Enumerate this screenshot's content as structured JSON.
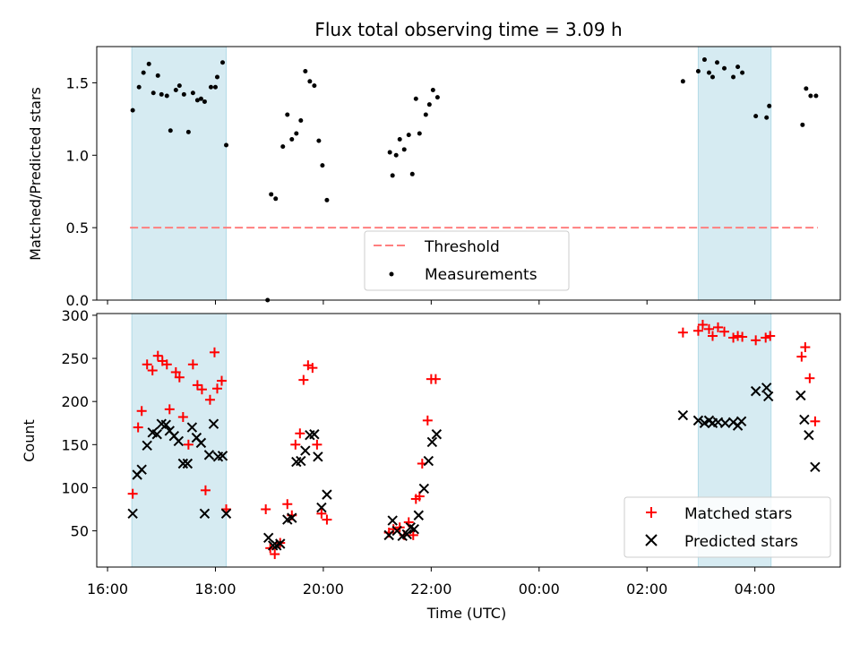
{
  "chart_data": [
    {
      "type": "scatter",
      "title": "Flux total observing time = 3.09 h",
      "ylabel": "Matched/Predicted stars",
      "xlabel": "",
      "ylim": [
        0,
        1.75
      ],
      "yticks": [
        0.0,
        0.5,
        1.0,
        1.5
      ],
      "ytick_labels": [
        "0.0",
        "0.5",
        "1.0",
        "1.5"
      ],
      "legend_position": "lower-center",
      "threshold": {
        "name": "Threshold",
        "value": 0.5,
        "color": "#ff7f7f",
        "style": "dashed",
        "x_range": [
          "16:25",
          "05:10"
        ]
      },
      "shaded_spans": [
        {
          "start": "16:27",
          "end": "18:12"
        },
        {
          "start": "02:57",
          "end": "04:18"
        }
      ],
      "series": [
        {
          "name": "Measurements",
          "color": "#000000",
          "marker": "dot",
          "points": [
            [
              "16:28",
              1.31
            ],
            [
              "16:35",
              1.47
            ],
            [
              "16:40",
              1.57
            ],
            [
              "16:46",
              1.63
            ],
            [
              "16:51",
              1.43
            ],
            [
              "16:56",
              1.55
            ],
            [
              "17:00",
              1.42
            ],
            [
              "17:06",
              1.41
            ],
            [
              "17:10",
              1.17
            ],
            [
              "17:16",
              1.45
            ],
            [
              "17:20",
              1.48
            ],
            [
              "17:25",
              1.42
            ],
            [
              "17:30",
              1.16
            ],
            [
              "17:35",
              1.43
            ],
            [
              "17:40",
              1.38
            ],
            [
              "17:44",
              1.39
            ],
            [
              "17:48",
              1.37
            ],
            [
              "17:55",
              1.47
            ],
            [
              "18:00",
              1.47
            ],
            [
              "18:02",
              1.54
            ],
            [
              "18:08",
              1.64
            ],
            [
              "18:12",
              1.07
            ],
            [
              "18:58",
              0.0
            ],
            [
              "19:02",
              0.73
            ],
            [
              "19:07",
              0.7
            ],
            [
              "19:15",
              1.06
            ],
            [
              "19:20",
              1.28
            ],
            [
              "19:25",
              1.11
            ],
            [
              "19:30",
              1.15
            ],
            [
              "19:35",
              1.24
            ],
            [
              "19:40",
              1.58
            ],
            [
              "19:45",
              1.51
            ],
            [
              "19:50",
              1.48
            ],
            [
              "19:55",
              1.1
            ],
            [
              "19:59",
              0.93
            ],
            [
              "20:04",
              0.69
            ],
            [
              "21:14",
              1.02
            ],
            [
              "21:17",
              0.86
            ],
            [
              "21:21",
              1.0
            ],
            [
              "21:25",
              1.11
            ],
            [
              "21:30",
              1.04
            ],
            [
              "21:35",
              1.14
            ],
            [
              "21:39",
              0.87
            ],
            [
              "21:43",
              1.39
            ],
            [
              "21:47",
              1.15
            ],
            [
              "21:54",
              1.28
            ],
            [
              "21:58",
              1.35
            ],
            [
              "22:02",
              1.45
            ],
            [
              "22:07",
              1.4
            ],
            [
              "02:40",
              1.51
            ],
            [
              "02:57",
              1.58
            ],
            [
              "03:04",
              1.66
            ],
            [
              "03:09",
              1.57
            ],
            [
              "03:13",
              1.54
            ],
            [
              "03:18",
              1.64
            ],
            [
              "03:26",
              1.6
            ],
            [
              "03:36",
              1.54
            ],
            [
              "03:41",
              1.61
            ],
            [
              "03:46",
              1.57
            ],
            [
              "04:01",
              1.27
            ],
            [
              "04:13",
              1.26
            ],
            [
              "04:16",
              1.34
            ],
            [
              "04:53",
              1.21
            ],
            [
              "04:57",
              1.46
            ],
            [
              "05:02",
              1.41
            ],
            [
              "05:08",
              1.41
            ]
          ]
        }
      ]
    },
    {
      "type": "scatter",
      "title": "",
      "ylabel": "Count",
      "xlabel": "Time (UTC)",
      "ylim": [
        8,
        302
      ],
      "yticks": [
        50,
        100,
        150,
        200,
        250,
        300
      ],
      "ytick_labels": [
        "50",
        "100",
        "150",
        "200",
        "250",
        "300"
      ],
      "x_start": "15:48",
      "x_end": "05:35",
      "xticks": [
        "16:00",
        "18:00",
        "20:00",
        "22:00",
        "00:00",
        "02:00",
        "04:00"
      ],
      "legend_position": "lower-right",
      "shaded_spans": [
        {
          "start": "16:27",
          "end": "18:12"
        },
        {
          "start": "02:57",
          "end": "04:18"
        }
      ],
      "series": [
        {
          "name": "Matched stars",
          "color": "#ff0000",
          "marker": "plus",
          "points": [
            [
              "16:28",
              93
            ],
            [
              "16:34",
              170
            ],
            [
              "16:38",
              189
            ],
            [
              "16:44",
              243
            ],
            [
              "16:50",
              236
            ],
            [
              "16:56",
              253
            ],
            [
              "17:01",
              247
            ],
            [
              "17:06",
              243
            ],
            [
              "17:09",
              191
            ],
            [
              "17:16",
              234
            ],
            [
              "17:20",
              228
            ],
            [
              "17:24",
              182
            ],
            [
              "17:30",
              150
            ],
            [
              "17:35",
              243
            ],
            [
              "17:40",
              219
            ],
            [
              "17:45",
              214
            ],
            [
              "17:49",
              97
            ],
            [
              "17:54",
              202
            ],
            [
              "17:59",
              257
            ],
            [
              "18:02",
              215
            ],
            [
              "18:07",
              224
            ],
            [
              "18:12",
              75
            ],
            [
              "18:56",
              75
            ],
            [
              "19:01",
              30
            ],
            [
              "19:06",
              23
            ],
            [
              "19:12",
              36
            ],
            [
              "19:20",
              81
            ],
            [
              "19:25",
              68
            ],
            [
              "19:29",
              150
            ],
            [
              "19:34",
              163
            ],
            [
              "19:38",
              225
            ],
            [
              "19:43",
              242
            ],
            [
              "19:48",
              239
            ],
            [
              "19:53",
              150
            ],
            [
              "19:58",
              70
            ],
            [
              "20:04",
              63
            ],
            [
              "21:13",
              48
            ],
            [
              "21:18",
              52
            ],
            [
              "21:25",
              54
            ],
            [
              "21:30",
              45
            ],
            [
              "21:35",
              60
            ],
            [
              "21:40",
              45
            ],
            [
              "21:43",
              87
            ],
            [
              "21:47",
              90
            ],
            [
              "21:50",
              128
            ],
            [
              "21:56",
              178
            ],
            [
              "22:00",
              226
            ],
            [
              "22:05",
              226
            ],
            [
              "02:40",
              280
            ],
            [
              "02:57",
              282
            ],
            [
              "03:02",
              289
            ],
            [
              "03:09",
              284
            ],
            [
              "03:13",
              276
            ],
            [
              "03:19",
              286
            ],
            [
              "03:26",
              281
            ],
            [
              "03:36",
              274
            ],
            [
              "03:41",
              276
            ],
            [
              "03:46",
              275
            ],
            [
              "04:01",
              271
            ],
            [
              "04:12",
              274
            ],
            [
              "04:17",
              276
            ],
            [
              "04:52",
              252
            ],
            [
              "04:56",
              263
            ],
            [
              "05:01",
              227
            ],
            [
              "05:07",
              177
            ]
          ]
        },
        {
          "name": "Predicted stars",
          "color": "#000000",
          "marker": "x",
          "points": [
            [
              "16:28",
              70
            ],
            [
              "16:33",
              115
            ],
            [
              "16:38",
              121
            ],
            [
              "16:44",
              149
            ],
            [
              "16:50",
              164
            ],
            [
              "16:55",
              162
            ],
            [
              "17:00",
              174
            ],
            [
              "17:05",
              173
            ],
            [
              "17:09",
              166
            ],
            [
              "17:14",
              160
            ],
            [
              "17:19",
              154
            ],
            [
              "17:24",
              128
            ],
            [
              "17:29",
              128
            ],
            [
              "17:34",
              170
            ],
            [
              "17:39",
              158
            ],
            [
              "17:44",
              152
            ],
            [
              "17:48",
              70
            ],
            [
              "17:53",
              138
            ],
            [
              "17:58",
              174
            ],
            [
              "18:03",
              136
            ],
            [
              "18:08",
              137
            ],
            [
              "18:12",
              70
            ],
            [
              "18:59",
              42
            ],
            [
              "19:04",
              33
            ],
            [
              "19:08",
              33
            ],
            [
              "19:12",
              35
            ],
            [
              "19:20",
              63
            ],
            [
              "19:25",
              65
            ],
            [
              "19:30",
              130
            ],
            [
              "19:35",
              131
            ],
            [
              "19:40",
              143
            ],
            [
              "19:45",
              161
            ],
            [
              "19:50",
              162
            ],
            [
              "19:54",
              136
            ],
            [
              "19:58",
              77
            ],
            [
              "20:04",
              92
            ],
            [
              "21:13",
              45
            ],
            [
              "21:17",
              62
            ],
            [
              "21:22",
              50
            ],
            [
              "21:28",
              44
            ],
            [
              "21:33",
              46
            ],
            [
              "21:37",
              54
            ],
            [
              "21:41",
              52
            ],
            [
              "21:46",
              68
            ],
            [
              "21:52",
              99
            ],
            [
              "21:57",
              131
            ],
            [
              "22:01",
              153
            ],
            [
              "22:06",
              162
            ],
            [
              "02:40",
              184
            ],
            [
              "02:57",
              178
            ],
            [
              "03:04",
              175
            ],
            [
              "03:09",
              178
            ],
            [
              "03:13",
              175
            ],
            [
              "03:19",
              176
            ],
            [
              "03:27",
              175
            ],
            [
              "03:36",
              176
            ],
            [
              "03:41",
              172
            ],
            [
              "03:45",
              177
            ],
            [
              "04:01",
              212
            ],
            [
              "04:13",
              216
            ],
            [
              "04:15",
              206
            ],
            [
              "04:51",
              207
            ],
            [
              "04:55",
              179
            ],
            [
              "05:00",
              161
            ],
            [
              "05:07",
              124
            ]
          ]
        }
      ]
    }
  ]
}
